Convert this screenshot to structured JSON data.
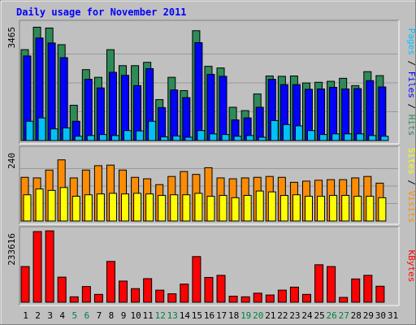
{
  "chart_data": {
    "type": "bar",
    "title": "Daily usage for November 2011",
    "categories": [
      "1",
      "2",
      "3",
      "4",
      "5",
      "6",
      "7",
      "8",
      "9",
      "10",
      "11",
      "12",
      "13",
      "14",
      "15",
      "16",
      "17",
      "18",
      "19",
      "20",
      "21",
      "22",
      "23",
      "24",
      "25",
      "26",
      "27",
      "28",
      "29",
      "30",
      "31"
    ],
    "weekend_days": [
      "5",
      "6",
      "12",
      "13",
      "19",
      "20",
      "26",
      "27"
    ],
    "panels": [
      {
        "id": "hits",
        "ymax_label": "3465",
        "ymax": 3465,
        "grid": true,
        "series": [
          {
            "name": "Hits",
            "color": "#2e8b57",
            "values": [
              2730,
              3405,
              3380,
              2880,
              1060,
              2130,
              1900,
              2730,
              2250,
              2250,
              2350,
              1230,
              1900,
              1500,
              3300,
              2230,
              2180,
              1000,
              900,
              1400,
              1940,
              1930,
              1940,
              1730,
              1750,
              1780,
              1870,
              1650,
              2070,
              1950,
              0
            ]
          },
          {
            "name": "Files",
            "color": "#0000ff",
            "values": [
              2540,
              3080,
              2930,
              2490,
              580,
              1840,
              1580,
              2050,
              1960,
              1650,
              2160,
              990,
              1520,
              1290,
              2940,
              1990,
              1930,
              620,
              680,
              1000,
              1840,
              1680,
              1680,
              1540,
              1550,
              1600,
              1550,
              1560,
              1800,
              1610,
              0
            ]
          },
          {
            "name": "Pages",
            "color": "#00bfff",
            "values": [
              580,
              680,
              350,
              380,
              130,
              150,
              180,
              150,
              300,
              290,
              580,
              110,
              140,
              100,
              300,
              200,
              180,
              130,
              150,
              100,
              600,
              480,
              440,
              300,
              180,
              200,
              200,
              200,
              150,
              130,
              0
            ]
          }
        ],
        "side_label": [
          "Pages",
          " / ",
          "Files",
          " / ",
          "Hits"
        ]
      },
      {
        "id": "visits",
        "ymax_label": "240",
        "ymax": 240,
        "grid": true,
        "series": [
          {
            "name": "Visits",
            "color": "#ff8c00",
            "values": [
              150,
              148,
              175,
              210,
              148,
              175,
              190,
              192,
              175,
              150,
              145,
              125,
              153,
              170,
              160,
              183,
              148,
              145,
              148,
              150,
              153,
              150,
              133,
              137,
              140,
              142,
              142,
              148,
              153,
              130,
              0
            ]
          },
          {
            "name": "Sites",
            "color": "#ffff00",
            "values": [
              90,
              110,
              105,
              115,
              85,
              90,
              93,
              95,
              93,
              95,
              93,
              88,
              90,
              90,
              95,
              85,
              88,
              80,
              88,
              103,
              100,
              88,
              90,
              85,
              85,
              88,
              88,
              85,
              85,
              80,
              0
            ]
          }
        ],
        "side_label": [
          "Sites",
          " / ",
          "Visits"
        ]
      },
      {
        "id": "kbytes",
        "ymax_label": "233616",
        "ymax": 233616,
        "grid": false,
        "series": [
          {
            "name": "KBytes",
            "color": "#ff0000",
            "values": [
              118000,
              233600,
              236000,
              83000,
              18000,
              52000,
              26000,
              135000,
              70000,
              45000,
              78000,
              40000,
              28000,
              60000,
              151000,
              82000,
              89000,
              20000,
              18000,
              30000,
              24000,
              40000,
              50000,
              26000,
              124000,
              118000,
              16000,
              77000,
              89000,
              53000,
              0
            ]
          }
        ],
        "side_label": [
          "KBytes"
        ]
      }
    ]
  }
}
